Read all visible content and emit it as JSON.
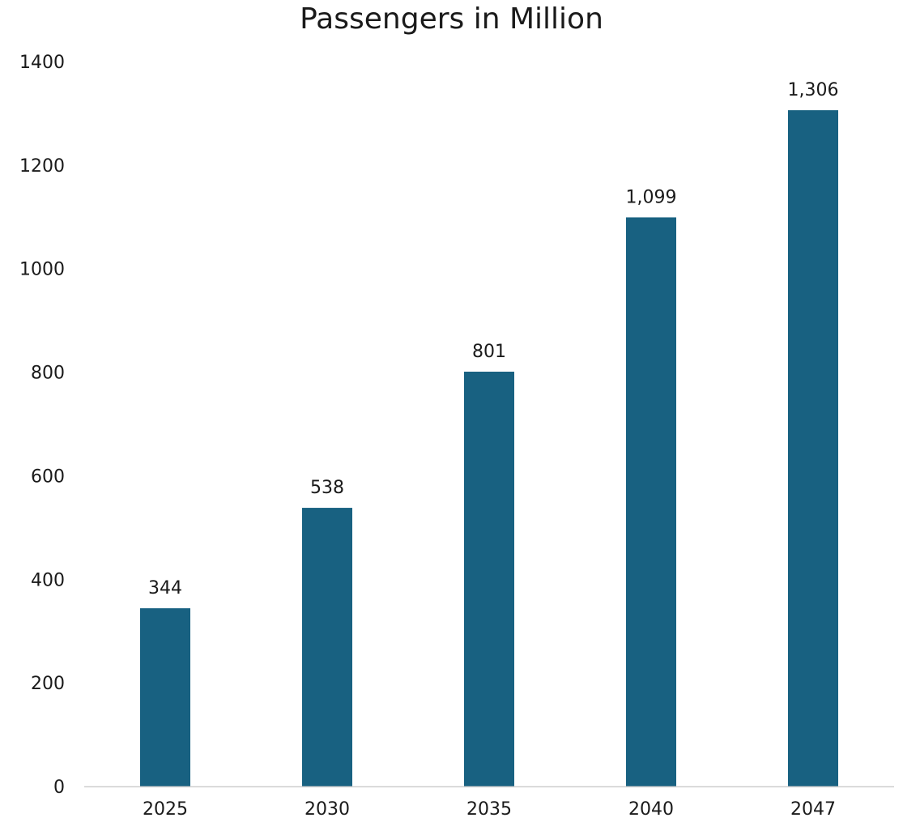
{
  "chart_data": {
    "type": "bar",
    "title": "Passengers in Million",
    "categories": [
      "2025",
      "2030",
      "2035",
      "2040",
      "2047"
    ],
    "values": [
      344,
      538,
      801,
      1099,
      1306
    ],
    "value_labels": [
      "344",
      "538",
      "801",
      "1,099",
      "1,306"
    ],
    "xlabel": "",
    "ylabel": "",
    "ylim": [
      0,
      1400
    ],
    "yticks": [
      "0",
      "200",
      "400",
      "600",
      "800",
      "1000",
      "1200",
      "1400"
    ],
    "grid": false,
    "legend": "none",
    "bar_color": "#186181"
  }
}
